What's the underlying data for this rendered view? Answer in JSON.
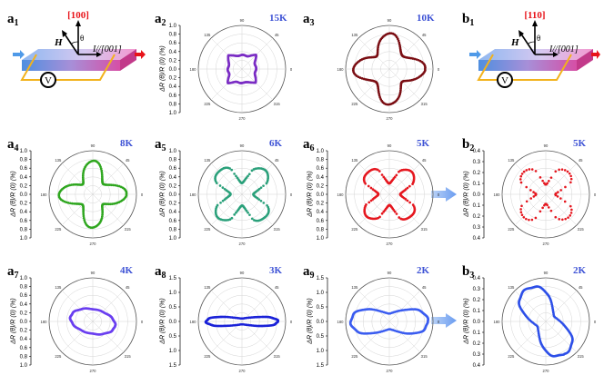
{
  "labels": {
    "a1": "a",
    "a1_sub": "1",
    "a2": "a",
    "a2_sub": "2",
    "a3": "a",
    "a3_sub": "3",
    "a4": "a",
    "a4_sub": "4",
    "a5": "a",
    "a5_sub": "5",
    "a6": "a",
    "a6_sub": "6",
    "a7": "a",
    "a7_sub": "7",
    "a8": "a",
    "a8_sub": "8",
    "a9": "a",
    "a9_sub": "9",
    "b1": "b",
    "b1_sub": "1",
    "b2": "b",
    "b2_sub": "2",
    "b3": "b",
    "b3_sub": "3"
  },
  "schematic_a": {
    "dir_label": "[100]",
    "field": "H",
    "angle": "θ",
    "current": "I//[001]",
    "voltmeter": "V"
  },
  "schematic_b": {
    "dir_label": "[110]",
    "field": "H",
    "angle": "θ",
    "current": "I//[001]",
    "voltmeter": "V"
  },
  "colors": {
    "accent_red": "#e8141a",
    "temp_blue": "#3d52d5",
    "arrow_blue": "#6a9cf0"
  },
  "chart_data": [
    {
      "id": "a2",
      "type": "scatter",
      "temperature": "15K",
      "ylabel": "ΔR (θ)/R (0) (%)",
      "yticks": [
        "1.0",
        "0.8",
        "0.6",
        "0.4",
        "0.2",
        "0.0",
        "0.2",
        "0.4",
        "0.6",
        "0.8",
        "1.0"
      ],
      "angle_ticks": [
        "0",
        "45",
        "90",
        "135",
        "180",
        "225",
        "270",
        "315"
      ],
      "color": "#7a2cc4",
      "shape": "square",
      "r0": 0.36,
      "amp": 0.05
    },
    {
      "id": "a3",
      "type": "scatter",
      "temperature": "10K",
      "ylabel": "",
      "angle_ticks": [
        "0",
        "45",
        "90",
        "135",
        "180",
        "225",
        "270",
        "315"
      ],
      "color": "#7a0d12",
      "shape": "clover",
      "r0": 0.62,
      "amp": 0.2
    },
    {
      "id": "b2",
      "type": "scatter",
      "temperature": "5K",
      "ylabel": "ΔR (θ)/R (0) (%)",
      "yticks": [
        "0.4",
        "0.3",
        "0.2",
        "0.1",
        "0.0",
        "0.1",
        "0.2",
        "0.3",
        "0.4"
      ],
      "angle_ticks": [
        "0",
        "45",
        "90",
        "135",
        "180",
        "225",
        "270",
        "315"
      ],
      "color": "#e5161e",
      "shape": "xcross",
      "r0": 0.55,
      "amp": 0.33,
      "sparse": true
    },
    {
      "id": "a4",
      "type": "scatter",
      "temperature": "8K",
      "ylabel": "ΔR (θ)/R (0) (%)",
      "yticks": [
        "1.0",
        "0.8",
        "0.6",
        "0.4",
        "0.2",
        "0.0",
        "0.2",
        "0.4",
        "0.6",
        "0.8",
        "1.0"
      ],
      "angle_ticks": [
        "0",
        "45",
        "90",
        "135",
        "180",
        "225",
        "270",
        "315"
      ],
      "color": "#2ea61e",
      "shape": "clover",
      "r0": 0.55,
      "amp": 0.22
    },
    {
      "id": "a5",
      "type": "scatter",
      "temperature": "6K",
      "ylabel": "ΔR (θ)/R (0) (%)",
      "yticks": [
        "1.0",
        "0.8",
        "0.6",
        "0.4",
        "0.2",
        "0.0",
        "0.2",
        "0.4",
        "0.6",
        "0.8",
        "1.0"
      ],
      "angle_ticks": [
        "0",
        "45",
        "90",
        "135",
        "180",
        "225",
        "270",
        "315"
      ],
      "color": "#2aa07a",
      "shape": "xcross",
      "r0": 0.58,
      "amp": 0.32
    },
    {
      "id": "a6",
      "type": "scatter",
      "temperature": "5K",
      "ylabel": "ΔR (θ)/R (0) (%)",
      "yticks": [
        "1.0",
        "0.8",
        "0.6",
        "0.4",
        "0.2",
        "0.0",
        "0.2",
        "0.4",
        "0.6",
        "0.8",
        "1.0"
      ],
      "angle_ticks": [
        "0",
        "45",
        "90",
        "135",
        "180",
        "225",
        "270",
        "315"
      ],
      "color": "#e5161e",
      "shape": "xcross",
      "r0": 0.55,
      "amp": 0.3
    },
    {
      "id": "a7",
      "type": "scatter",
      "temperature": "4K",
      "ylabel": "ΔR (θ)/R (0) (%)",
      "yticks": [
        "1.0",
        "0.8",
        "0.6",
        "0.4",
        "0.2",
        "0.0",
        "0.2",
        "0.4",
        "0.6",
        "0.8",
        "1.0"
      ],
      "angle_ticks": [
        "0",
        "45",
        "90",
        "135",
        "180",
        "225",
        "270",
        "315"
      ],
      "color": "#6a3ff0",
      "shape": "ellipse",
      "rx": 0.52,
      "ry": 0.28,
      "tilt": -12
    },
    {
      "id": "a8",
      "type": "scatter",
      "temperature": "3K",
      "ylabel": "ΔR (θ)/R (0) (%)",
      "yticks": [
        "1.5",
        "1.0",
        "0.5",
        "0.0",
        "0.5",
        "1.0",
        "1.5"
      ],
      "angle_ticks": [
        "0",
        "45",
        "90",
        "135",
        "180",
        "225",
        "270",
        "315"
      ],
      "color": "#1a22d8",
      "shape": "peanut",
      "rx": 0.82,
      "ry": 0.12
    },
    {
      "id": "a9",
      "type": "scatter",
      "temperature": "2K",
      "ylabel": "ΔR (θ)/R (0) (%)",
      "yticks": [
        "1.5",
        "1.0",
        "0.5",
        "0.0",
        "0.5",
        "1.0",
        "1.5"
      ],
      "angle_ticks": [
        "0",
        "45",
        "90",
        "135",
        "180",
        "225",
        "270",
        "315"
      ],
      "color": "#3a5cf0",
      "shape": "peanut",
      "rx": 0.88,
      "ry": 0.32
    },
    {
      "id": "b3",
      "type": "scatter",
      "temperature": "2K",
      "ylabel": "ΔR (θ)/R (0) (%)",
      "yticks": [
        "0.4",
        "0.3",
        "0.2",
        "0.1",
        "0.0",
        "0.1",
        "0.2",
        "0.3",
        "0.4"
      ],
      "angle_ticks": [
        "0",
        "45",
        "90",
        "135",
        "180",
        "225",
        "270",
        "315"
      ],
      "color": "#2d4fe8",
      "shape": "peanut",
      "rx": 0.86,
      "ry": 0.4,
      "tilt": -60
    }
  ]
}
